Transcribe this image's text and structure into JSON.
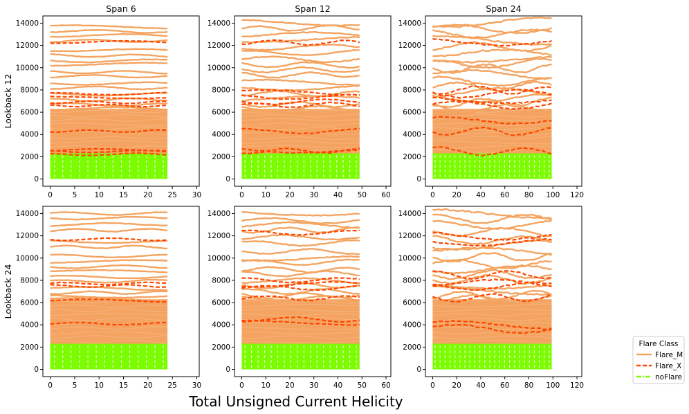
{
  "figure": {
    "xlabel": "Total Unsigned Current Helicity",
    "row_labels": [
      "Lookback 12",
      "Lookback 24"
    ],
    "column_titles": [
      "Span 6",
      "Span 12",
      "Span 24"
    ]
  },
  "legend": {
    "title": "Flare Class",
    "placement": "lower-right outside",
    "entries": [
      {
        "label": "Flare_M",
        "color": "#f4a460",
        "style": "solid"
      },
      {
        "label": "Flare_X",
        "color": "#ff4500",
        "style": "dashed"
      },
      {
        "label": "noFlare",
        "color": "#7cfc00",
        "style": "dashdot"
      }
    ]
  },
  "chart_data": [
    {
      "type": "line",
      "row": 0,
      "col": 0,
      "xlim": [
        -1.5,
        30.5
      ],
      "ylim": [
        -650,
        14650
      ],
      "xticks": [
        0,
        5,
        10,
        15,
        20,
        25,
        30
      ],
      "yticks": [
        0,
        2000,
        4000,
        6000,
        8000,
        10000,
        12000,
        14000
      ],
      "flare_m_levels": [
        13700,
        13300,
        12900,
        12400,
        11600,
        11100,
        10600,
        10300,
        9600,
        9200,
        8600,
        8200,
        7600,
        7100,
        6700,
        6300
      ],
      "flare_x_levels": [
        12300,
        7650,
        7300,
        6900,
        6600,
        4300,
        2600,
        2500,
        2200
      ],
      "band_flare_m": [
        2300,
        6300
      ],
      "band_noflare": [
        0,
        2500
      ]
    },
    {
      "type": "line",
      "row": 0,
      "col": 1,
      "xlim": [
        -3,
        62
      ],
      "ylim": [
        -650,
        14650
      ],
      "xticks": [
        0,
        10,
        20,
        30,
        40,
        50,
        60
      ],
      "yticks": [
        0,
        2000,
        4000,
        6000,
        8000,
        10000,
        12000,
        14000
      ],
      "flare_m_levels": [
        14100,
        13500,
        13000,
        12500,
        11800,
        11300,
        10800,
        10300,
        9800,
        9300,
        8700,
        8200,
        7700,
        7200,
        6700,
        6300
      ],
      "flare_x_levels": [
        12300,
        7800,
        7400,
        6900,
        6600,
        4300,
        2600,
        2500
      ],
      "band_flare_m": [
        2300,
        6300
      ],
      "band_noflare": [
        0,
        2500
      ]
    },
    {
      "type": "line",
      "row": 0,
      "col": 2,
      "xlim": [
        -6,
        124
      ],
      "ylim": [
        -650,
        14650
      ],
      "xticks": [
        0,
        20,
        40,
        60,
        80,
        100,
        120
      ],
      "yticks": [
        0,
        2000,
        4000,
        6000,
        8000,
        10000,
        12000,
        14000
      ],
      "flare_m_levels": [
        14000,
        13500,
        13100,
        12500,
        11900,
        11300,
        10900,
        10300,
        9900,
        9400,
        8800,
        8300,
        7800,
        7300,
        6800,
        6300
      ],
      "flare_x_levels": [
        12400,
        8000,
        7600,
        7200,
        6600,
        5200,
        4300,
        2500
      ],
      "band_flare_m": [
        2300,
        6300
      ],
      "band_noflare": [
        0,
        2500
      ]
    },
    {
      "type": "line",
      "row": 1,
      "col": 0,
      "xlim": [
        -1.5,
        30.5
      ],
      "ylim": [
        -650,
        14650
      ],
      "xticks": [
        0,
        5,
        10,
        15,
        20,
        25,
        30
      ],
      "yticks": [
        0,
        2000,
        4000,
        6000,
        8000,
        10000,
        12000,
        14000
      ],
      "flare_m_levels": [
        14000,
        13600,
        13000,
        12500,
        11500,
        11000,
        10200,
        9700,
        9200,
        8800,
        8300,
        7900,
        7300,
        6900,
        6600,
        6300
      ],
      "flare_x_levels": [
        11700,
        7700,
        7500,
        6200,
        4100
      ],
      "band_flare_m": [
        2300,
        6300
      ],
      "band_noflare": [
        0,
        2500
      ]
    },
    {
      "type": "line",
      "row": 1,
      "col": 1,
      "xlim": [
        -3,
        62
      ],
      "ylim": [
        -650,
        14650
      ],
      "xticks": [
        0,
        10,
        20,
        30,
        40,
        50,
        60
      ],
      "yticks": [
        0,
        2000,
        4000,
        6000,
        8000,
        10000,
        12000,
        14000
      ],
      "flare_m_levels": [
        14000,
        13400,
        13000,
        12500,
        11800,
        11300,
        10600,
        10000,
        9600,
        9000,
        8600,
        8000,
        7500,
        7000,
        6600,
        6300
      ],
      "flare_x_levels": [
        12300,
        8000,
        7600,
        7300,
        6400,
        4500,
        4200
      ],
      "band_flare_m": [
        2300,
        6300
      ],
      "band_noflare": [
        0,
        2500
      ]
    },
    {
      "type": "line",
      "row": 1,
      "col": 2,
      "xlim": [
        -6,
        124
      ],
      "ylim": [
        -650,
        14650
      ],
      "xticks": [
        0,
        20,
        40,
        60,
        80,
        100,
        120
      ],
      "yticks": [
        0,
        2000,
        4000,
        6000,
        8000,
        10000,
        12000,
        14000
      ],
      "flare_m_levels": [
        14000,
        13500,
        13000,
        12400,
        11700,
        11100,
        10600,
        10000,
        9500,
        9000,
        8500,
        8100,
        7600,
        7100,
        6600,
        6300
      ],
      "flare_x_levels": [
        12000,
        11500,
        8500,
        7800,
        7500,
        6400,
        4000,
        3700
      ],
      "band_flare_m": [
        2300,
        6300
      ],
      "band_noflare": [
        0,
        2600
      ]
    }
  ]
}
